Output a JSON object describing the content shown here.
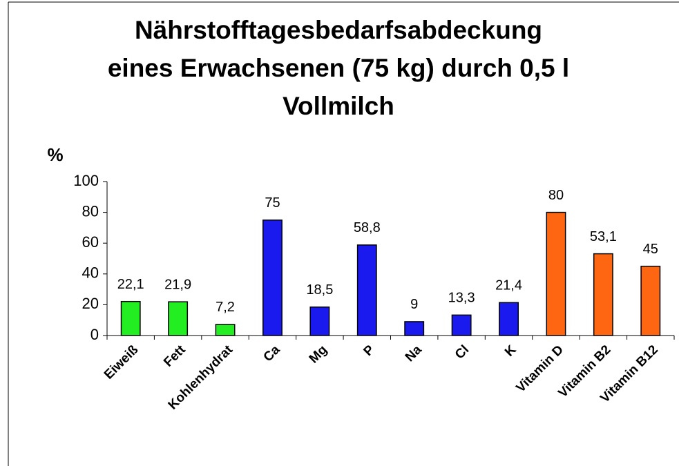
{
  "chart_data": {
    "type": "bar",
    "title": [
      "Nährstofftagesbedarfsabdeckung",
      "eines Erwachsenen (75 kg) durch 0,5 l",
      "Vollmilch"
    ],
    "y_label": "%",
    "categories": [
      "Eiweiß",
      "Fett",
      "Kohlenhydrat",
      "Ca",
      "Mg",
      "P",
      "Na",
      "Cl",
      "K",
      "Vitamin D",
      "Vitamin B2",
      "Vitamin B12"
    ],
    "values": [
      22.1,
      21.9,
      7.2,
      75,
      18.5,
      58.8,
      9,
      13.3,
      21.4,
      80,
      53.1,
      45
    ],
    "value_labels": [
      "22,1",
      "21,9",
      "7,2",
      "75",
      "18,5",
      "58,8",
      "9",
      "13,3",
      "21,4",
      "80",
      "53,1",
      "45"
    ],
    "colors": [
      "#22ee22",
      "#22ee22",
      "#22ee22",
      "#1a1aee",
      "#1a1aee",
      "#1a1aee",
      "#1a1aee",
      "#1a1aee",
      "#1a1aee",
      "#ff6611",
      "#ff6611",
      "#ff6611"
    ],
    "ylim": [
      0,
      100
    ],
    "yticks": [
      0,
      20,
      40,
      60,
      80,
      100
    ],
    "grid": false
  }
}
